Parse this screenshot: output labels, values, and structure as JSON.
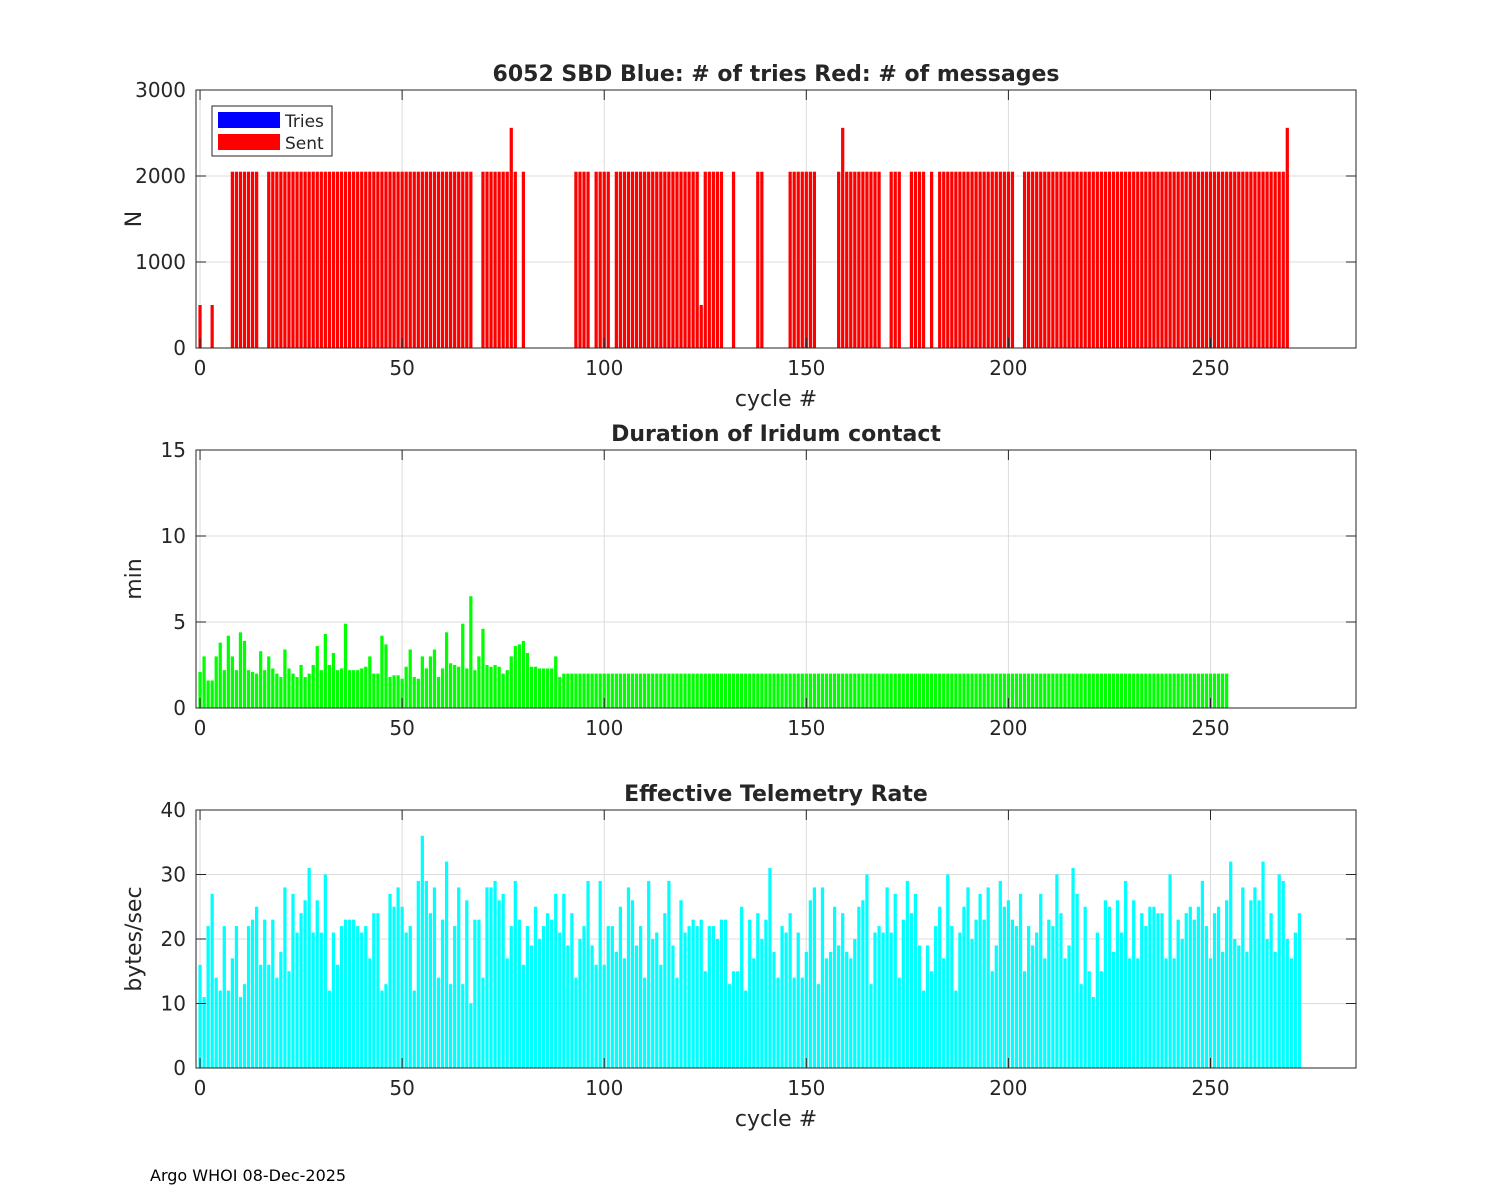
{
  "footer": "Argo WHOI 08-Dec-2025",
  "chart_data": [
    {
      "type": "bar",
      "title": "6052 SBD  Blue: # of tries   Red: # of messages",
      "xlabel": "cycle #",
      "ylabel": "N",
      "xlim": [
        -1,
        286
      ],
      "ylim": [
        0,
        3000
      ],
      "xticks": [
        0,
        50,
        100,
        150,
        200,
        250
      ],
      "yticks": [
        0,
        1000,
        2000,
        3000
      ],
      "grid": true,
      "legend": {
        "position": "top-left",
        "entries": [
          "Tries",
          "Sent"
        ]
      },
      "x_start": 0,
      "series": [
        {
          "name": "Tries",
          "color": "#0000ff",
          "values": [
            5,
            5,
            5,
            5,
            5,
            5,
            5,
            5,
            5,
            5,
            5,
            5,
            5,
            5,
            5,
            5,
            5,
            5,
            5,
            5,
            5,
            5,
            5,
            5,
            5,
            5,
            5,
            5,
            5,
            5,
            5,
            5,
            5,
            5,
            5,
            5,
            5,
            5,
            5,
            5,
            5,
            5,
            5,
            5,
            5,
            5,
            5,
            5,
            5,
            5,
            5,
            5,
            5,
            5,
            5,
            5,
            5,
            5,
            5,
            5,
            5,
            5,
            5,
            5,
            5,
            5,
            5,
            5,
            5,
            5,
            5,
            5,
            5,
            5,
            5,
            5,
            5,
            5,
            5,
            5,
            5,
            5,
            5,
            5,
            5,
            5,
            5,
            5,
            5,
            5,
            5,
            5,
            5,
            5,
            5,
            5,
            5,
            5,
            5,
            5,
            5,
            5,
            5,
            5,
            5,
            5,
            5,
            5,
            5,
            5,
            5,
            5,
            5,
            5,
            5,
            5,
            5,
            5,
            5,
            5,
            5,
            5,
            5,
            5,
            5,
            5,
            5,
            5,
            5,
            5,
            5,
            5,
            5,
            5,
            5,
            5,
            5,
            5,
            5,
            5,
            5,
            5,
            5,
            5,
            5,
            5,
            5,
            5,
            5,
            5,
            20,
            5,
            5,
            5,
            5,
            5,
            5,
            5,
            5,
            5,
            5,
            5,
            5,
            5,
            5,
            5,
            5,
            25,
            5,
            5,
            5,
            5,
            5,
            5,
            5,
            5,
            5,
            5,
            5,
            5,
            5,
            5,
            5,
            5,
            5,
            5,
            5,
            5,
            5,
            5,
            5,
            5,
            5,
            5,
            5,
            5,
            5,
            5,
            5,
            5,
            5,
            5,
            5,
            5,
            5,
            5,
            5,
            5,
            5,
            5,
            5,
            5,
            5,
            5,
            5,
            5,
            5,
            5,
            5,
            5,
            5,
            5,
            5,
            5,
            5,
            5,
            5,
            5,
            5,
            5,
            5,
            5,
            5,
            5,
            5,
            5,
            5,
            5,
            5,
            5,
            5,
            5,
            5,
            5,
            5,
            5,
            5,
            5,
            5,
            5,
            5,
            5,
            5,
            5,
            5,
            5,
            5,
            5,
            5,
            5,
            5,
            5
          ]
        },
        {
          "name": "Sent",
          "color": "#ff0000",
          "values": [
            500,
            0,
            0,
            500,
            0,
            0,
            0,
            0,
            2050,
            2050,
            2050,
            2050,
            2050,
            2050,
            2050,
            0,
            0,
            2050,
            2050,
            2050,
            2050,
            2050,
            2050,
            2050,
            2050,
            2050,
            2050,
            2050,
            2050,
            2050,
            2050,
            2050,
            2050,
            2050,
            2050,
            2050,
            2050,
            2050,
            2050,
            2050,
            2050,
            2050,
            2050,
            2050,
            2050,
            2050,
            2050,
            2050,
            2050,
            2050,
            2050,
            2050,
            2050,
            2050,
            2050,
            2050,
            2050,
            2050,
            2050,
            2050,
            2050,
            2050,
            2050,
            2050,
            2050,
            2050,
            2050,
            2050,
            0,
            0,
            2050,
            2050,
            2050,
            2050,
            2050,
            2050,
            2050,
            2560,
            2050,
            0,
            2050,
            0,
            0,
            0,
            0,
            0,
            0,
            0,
            0,
            0,
            0,
            0,
            0,
            2050,
            2050,
            2050,
            2050,
            0,
            2050,
            2050,
            2050,
            2050,
            0,
            2050,
            2050,
            2050,
            2050,
            2050,
            2050,
            2050,
            2050,
            2050,
            2050,
            2050,
            2050,
            2050,
            2050,
            2050,
            2050,
            2050,
            2050,
            2050,
            2050,
            2050,
            500,
            2050,
            2050,
            2050,
            2050,
            2050,
            0,
            0,
            2050,
            0,
            0,
            0,
            0,
            0,
            2050,
            2050,
            0,
            0,
            0,
            0,
            0,
            0,
            2050,
            2050,
            2050,
            2050,
            2050,
            2050,
            2050,
            0,
            0,
            0,
            0,
            0,
            2050,
            2560,
            2050,
            2050,
            2050,
            2050,
            2050,
            2050,
            2050,
            2050,
            2050,
            0,
            0,
            2050,
            2050,
            2050,
            0,
            0,
            2050,
            2050,
            2050,
            2050,
            0,
            2050,
            0,
            2050,
            2050,
            2050,
            2050,
            2050,
            2050,
            2050,
            2050,
            2050,
            2050,
            2050,
            2050,
            2050,
            2050,
            2050,
            2050,
            2050,
            2050,
            2050,
            0,
            0,
            2050,
            2050,
            2050,
            2050,
            2050,
            2050,
            2050,
            2050,
            2050,
            2050,
            2050,
            2050,
            2050,
            2050,
            2050,
            2050,
            2050,
            2050,
            2050,
            2050,
            2050,
            2050,
            2050,
            2050,
            2050,
            2050,
            2050,
            2050,
            2050,
            2050,
            2050,
            2050,
            2050,
            2050,
            2050,
            2050,
            2050,
            2050,
            2050,
            2050,
            2050,
            2050,
            2050,
            2050,
            2050,
            2050,
            2050,
            2050,
            2050,
            2050,
            2050,
            2050,
            2050,
            2050,
            2050,
            2050,
            2050,
            2050,
            2050,
            2050,
            2050,
            2050,
            2050,
            2050,
            2050,
            2560
          ]
        }
      ]
    },
    {
      "type": "bar",
      "title": "Duration of Iridum contact",
      "xlabel": "",
      "ylabel": "min",
      "xlim": [
        -1,
        286
      ],
      "ylim": [
        0,
        15
      ],
      "xticks": [
        0,
        50,
        100,
        150,
        200,
        250
      ],
      "yticks": [
        0,
        5,
        10,
        15
      ],
      "grid": true,
      "x_start": 0,
      "series": [
        {
          "name": "Duration",
          "color": "#00ff00",
          "values": [
            2.1,
            3.0,
            1.6,
            1.6,
            3.0,
            3.8,
            2.2,
            4.2,
            3.0,
            2.2,
            4.4,
            3.9,
            2.2,
            2.1,
            2.0,
            3.3,
            2.2,
            3.0,
            2.3,
            2.0,
            1.8,
            3.4,
            2.3,
            2.0,
            1.8,
            2.5,
            1.8,
            2.0,
            2.5,
            3.6,
            2.2,
            4.3,
            2.5,
            3.2,
            2.2,
            2.3,
            4.9,
            2.2,
            2.2,
            2.2,
            2.3,
            2.4,
            3.0,
            2.0,
            2.0,
            4.2,
            3.7,
            1.8,
            1.9,
            1.9,
            1.7,
            2.4,
            3.4,
            1.8,
            1.7,
            3.0,
            2.3,
            3.0,
            3.4,
            1.8,
            2.3,
            4.4,
            2.6,
            2.5,
            2.4,
            4.9,
            2.3,
            6.5,
            2.2,
            3.0,
            4.6,
            2.5,
            2.4,
            2.5,
            2.4,
            2.0,
            2.2,
            3.0,
            3.6,
            3.7,
            3.9,
            3.2,
            2.4,
            2.4,
            2.3,
            2.3,
            2.3,
            2.3,
            3.0,
            1.8,
            2.0,
            2.0,
            2.0,
            2.0,
            2.0,
            2.0,
            2.0,
            2.0,
            2.0,
            2.0,
            2.0,
            2.0,
            2.0,
            2.0,
            2.0,
            2.0,
            2.0,
            2.0,
            2.0,
            2.0,
            2.0,
            2.0,
            2.0,
            2.0,
            2.0,
            2.0,
            2.0,
            2.0,
            2.0,
            2.0,
            2.0,
            2.0,
            2.0,
            2.0,
            2.0,
            2.0,
            2.0,
            2.0,
            2.0,
            2.0,
            2.0,
            2.0,
            2.0,
            2.0,
            2.0,
            2.0,
            2.0,
            2.0,
            2.0,
            2.0,
            2.0,
            2.0,
            2.0,
            2.0,
            2.0,
            2.0,
            2.0,
            2.0,
            2.0,
            2.0,
            2.0,
            2.0,
            2.0,
            2.0,
            2.0,
            2.0,
            2.0,
            2.0,
            2.0,
            2.0,
            2.0,
            2.0,
            2.0,
            2.0,
            2.0,
            2.0,
            2.0,
            2.0,
            2.0,
            2.0,
            2.0,
            2.0,
            2.0,
            2.0,
            2.0,
            2.0,
            2.0,
            2.0,
            2.0,
            2.0,
            2.0,
            2.0,
            2.0,
            2.0,
            2.0,
            2.0,
            2.0,
            2.0,
            2.0,
            2.0,
            2.0,
            2.0,
            2.0,
            2.0,
            2.0,
            2.0,
            2.0,
            2.0,
            2.0,
            2.0,
            2.0,
            2.0,
            2.0,
            2.0,
            2.0,
            2.0,
            2.0,
            2.0,
            2.0,
            2.0,
            2.0,
            2.0,
            2.0,
            2.0,
            2.0,
            2.0,
            2.0,
            2.0,
            2.0,
            2.0,
            2.0,
            2.0,
            2.0,
            2.0,
            2.0,
            2.0,
            2.0,
            2.0,
            2.0,
            2.0,
            2.0,
            2.0,
            2.0,
            2.0,
            2.0,
            2.0,
            2.0,
            2.0,
            2.0,
            2.0,
            2.0,
            2.0,
            2.0,
            2.0,
            2.0,
            2.0,
            2.0,
            2.0,
            2.0,
            2.0,
            2.0,
            2.0,
            2.0,
            2.0,
            2.0
          ]
        }
      ]
    },
    {
      "type": "bar",
      "title": "Effective Telemetry Rate",
      "xlabel": "cycle #",
      "ylabel": "bytes/sec",
      "xlim": [
        -1,
        286
      ],
      "ylim": [
        0,
        40
      ],
      "xticks": [
        0,
        50,
        100,
        150,
        200,
        250
      ],
      "yticks": [
        0,
        10,
        20,
        30,
        40
      ],
      "grid": true,
      "x_start": 0,
      "series": [
        {
          "name": "Rate",
          "color": "#00ffff",
          "values": [
            16,
            11,
            22,
            27,
            14,
            12,
            22,
            12,
            17,
            22,
            11,
            13,
            22,
            23,
            25,
            16,
            23,
            16,
            23,
            14,
            18,
            28,
            15,
            27,
            21,
            24,
            26,
            31,
            21,
            26,
            21,
            30,
            12,
            21,
            16,
            22,
            23,
            23,
            23,
            22,
            21,
            22,
            17,
            24,
            24,
            12,
            13,
            27,
            25,
            28,
            25,
            21,
            22,
            12,
            29,
            36,
            29,
            24,
            28,
            14,
            23,
            32,
            13,
            22,
            28,
            13,
            26,
            10,
            23,
            23,
            14,
            28,
            28,
            29,
            26,
            27,
            17,
            22,
            29,
            23,
            16,
            22,
            19,
            25,
            20,
            22,
            24,
            23,
            27,
            21,
            27,
            19,
            24,
            14,
            20,
            22,
            29,
            19,
            16,
            29,
            16,
            22,
            22,
            18,
            25,
            17,
            28,
            26,
            19,
            22,
            14,
            29,
            20,
            21,
            16,
            24,
            29,
            19,
            14,
            26,
            21,
            22,
            23,
            22,
            23,
            15,
            22,
            22,
            20,
            23,
            23,
            13,
            15,
            15,
            25,
            12,
            23,
            17,
            24,
            20,
            23,
            31,
            18,
            14,
            22,
            21,
            24,
            14,
            21,
            14,
            18,
            26,
            28,
            13,
            28,
            17,
            18,
            25,
            19,
            24,
            18,
            17,
            20,
            25,
            26,
            30,
            13,
            21,
            22,
            21,
            28,
            21,
            27,
            14,
            23,
            29,
            24,
            27,
            19,
            12,
            19,
            15,
            22,
            25,
            17,
            30,
            22,
            12,
            21,
            25,
            28,
            20,
            23,
            27,
            23,
            28,
            15,
            19,
            29,
            25,
            26,
            23,
            22,
            27,
            15,
            22,
            19,
            21,
            27,
            17,
            23,
            22,
            30,
            24,
            17,
            19,
            31,
            27,
            13,
            25,
            15,
            11,
            21,
            15,
            26,
            25,
            18,
            26,
            21,
            29,
            17,
            26,
            17,
            24,
            22,
            25,
            25,
            24,
            24,
            17,
            30,
            17,
            23,
            20,
            24,
            25,
            23,
            25,
            29,
            22,
            17,
            24,
            25,
            18,
            26,
            32,
            20,
            19,
            28,
            18,
            26,
            28,
            26,
            32,
            20,
            24,
            18,
            30,
            29,
            20,
            17,
            21,
            24
          ]
        }
      ]
    }
  ]
}
